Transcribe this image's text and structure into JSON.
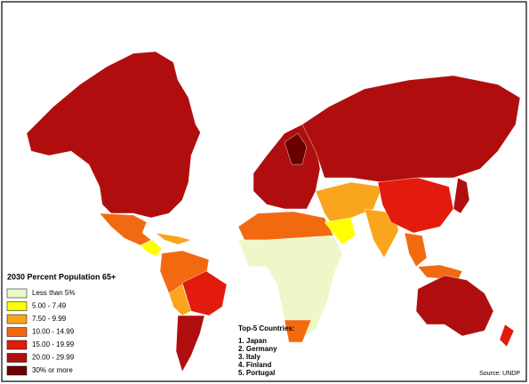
{
  "legend": {
    "title": "2030 Percent Population 65+",
    "items": [
      {
        "label": "Less than 5%",
        "color": "#eef7c8"
      },
      {
        "label": "5.00 - 7.49",
        "color": "#ffff00"
      },
      {
        "label": "7.50 - 9.99",
        "color": "#f9a51e"
      },
      {
        "label": "10.00 - 14.99",
        "color": "#f26a10"
      },
      {
        "label": "15.00 - 19.99",
        "color": "#e21b0c"
      },
      {
        "label": "20.00 - 29.99",
        "color": "#b00e0e"
      },
      {
        "label": "30% or more",
        "color": "#6a0000"
      }
    ]
  },
  "top5": {
    "title": "Top-5 Countries:",
    "items": [
      "1. Japan",
      "2. Germany",
      "3. Italy",
      "4. Finland",
      "5. Portugal"
    ]
  },
  "source": "Source: UNDP"
}
